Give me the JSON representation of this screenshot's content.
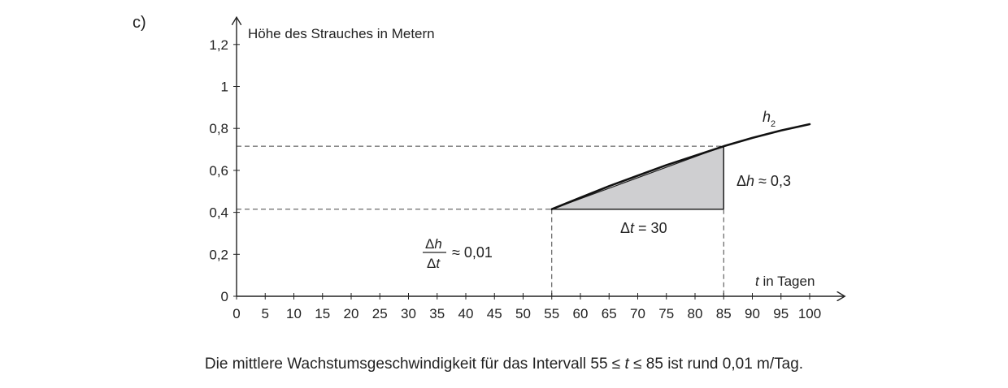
{
  "part_label": "c)",
  "caption": {
    "before": "Die mittlere Wachstumsgeschwindigkeit für das Intervall  55 ≤ ",
    "var": "t",
    "after": " ≤ 85  ist rund 0,01 m/Tag."
  },
  "chart_data": {
    "type": "line",
    "ylabel": "Höhe des Strauches in Metern",
    "xlabel_var": "t",
    "xlabel_rest": " in Tagen",
    "x_ticks": [
      0,
      5,
      10,
      15,
      20,
      25,
      30,
      35,
      40,
      45,
      50,
      55,
      60,
      65,
      70,
      75,
      80,
      85,
      90,
      95,
      100
    ],
    "y_ticks": [
      0,
      0.2,
      0.4,
      0.6,
      0.8,
      1,
      1.2
    ],
    "y_tick_labels": [
      "0",
      "0,2",
      "0,4",
      "0,6",
      "0,8",
      "1",
      "1,2"
    ],
    "xlim": [
      0,
      105
    ],
    "ylim": [
      0,
      1.33
    ],
    "grid": false,
    "series": [
      {
        "name": "h2",
        "x": [
          55,
          60,
          65,
          70,
          75,
          80,
          85,
          90,
          95,
          100
        ],
        "y": [
          0.415,
          0.47,
          0.525,
          0.575,
          0.625,
          0.67,
          0.715,
          0.755,
          0.79,
          0.82
        ]
      }
    ],
    "interval": {
      "t1": 55,
      "t2": 85,
      "h1": 0.415,
      "h2": 0.715
    },
    "annotations": {
      "curve_label_main": "h",
      "curve_label_sub": "2",
      "delta_h_sym": "Δ",
      "delta_h_var": "h",
      "delta_h_rest": " ≈ 0,3",
      "delta_t_sym": "Δ",
      "delta_t_var": "t",
      "delta_t_rest": " = 30",
      "frac_num_sym": "Δ",
      "frac_num_var": "h",
      "frac_den_sym": "Δ",
      "frac_den_var": "t",
      "frac_rest": "≈ 0,01"
    }
  }
}
